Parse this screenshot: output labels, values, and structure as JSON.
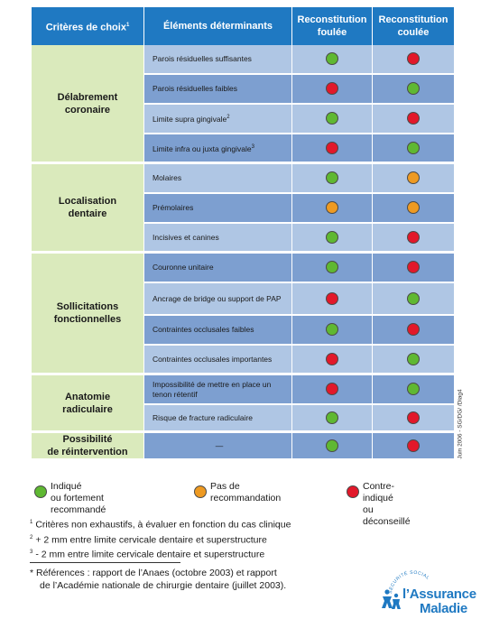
{
  "table": {
    "headers": {
      "criteria": "Critères de choix",
      "criteria_sup": "1",
      "elements": "Éléments déterminants",
      "foulee_line1": "Reconstitution",
      "foulee_line2": "foulée",
      "coulee_line1": "Reconstitution",
      "coulee_line2": "coulée"
    },
    "groups": [
      {
        "criterion_lines": [
          "Délabrement",
          "coronaire"
        ],
        "rows": [
          {
            "element": "Parois résiduelles suffisantes",
            "sup": "",
            "foulee": "green",
            "coulee": "red"
          },
          {
            "element": "Parois résiduelles faibles",
            "sup": "",
            "foulee": "red",
            "coulee": "green"
          },
          {
            "element": "Limite supra gingivale",
            "sup": "2",
            "foulee": "green",
            "coulee": "red"
          },
          {
            "element": "Limite infra ou juxta gingivale",
            "sup": "3",
            "foulee": "red",
            "coulee": "green"
          }
        ]
      },
      {
        "criterion_lines": [
          "Localisation",
          "dentaire"
        ],
        "rows": [
          {
            "element": "Molaires",
            "sup": "",
            "foulee": "green",
            "coulee": "orange"
          },
          {
            "element": "Prémolaires",
            "sup": "",
            "foulee": "orange",
            "coulee": "orange"
          },
          {
            "element": "Incisives et canines",
            "sup": "",
            "foulee": "green",
            "coulee": "red"
          }
        ]
      },
      {
        "criterion_lines": [
          "Sollicitations",
          "fonctionnelles"
        ],
        "rows": [
          {
            "element": "Couronne unitaire",
            "sup": "",
            "foulee": "green",
            "coulee": "red"
          },
          {
            "element": "Ancrage de bridge ou support de PAP",
            "sup": "",
            "foulee": "red",
            "coulee": "green"
          },
          {
            "element": "Contraintes occlusales faibles",
            "sup": "",
            "foulee": "green",
            "coulee": "red"
          },
          {
            "element": "Contraintes occlusales importantes",
            "sup": "",
            "foulee": "red",
            "coulee": "green"
          }
        ]
      },
      {
        "criterion_lines": [
          "Anatomie",
          "radiculaire"
        ],
        "rows": [
          {
            "element_lines": [
              "Impossibilité de mettre en place un",
              "tenon rétentif"
            ],
            "sup": "",
            "foulee": "red",
            "coulee": "green"
          },
          {
            "element": "Risque de fracture radiculaire",
            "sup": "",
            "foulee": "green",
            "coulee": "red"
          }
        ]
      },
      {
        "criterion_lines": [
          "Possibilité",
          "de réintervention"
        ],
        "rows": [
          {
            "element": "—",
            "sup": "",
            "foulee": "green",
            "coulee": "red",
            "center": true
          }
        ]
      }
    ]
  },
  "vertical_note": "Juin 2006 - SG/DG/ /Diag4",
  "legend": [
    {
      "color": "green",
      "lines": [
        "Indiqué",
        "ou fortement recommandé"
      ]
    },
    {
      "color": "orange",
      "lines": [
        "Pas de recommandation"
      ]
    },
    {
      "color": "red",
      "lines": [
        "Contre-indiqué",
        "ou déconseillé"
      ]
    }
  ],
  "footnotes": [
    {
      "sup": "1",
      "text": "Critères non exhaustifs, à évaluer en fonction du cas clinique"
    },
    {
      "sup": "2",
      "text": "+ 2 mm entre limite cervicale dentaire et superstructure"
    },
    {
      "sup": "3",
      "text": "- 2 mm entre limite cervicale dentaire et superstructure"
    }
  ],
  "references": [
    "* Références : rapport de l’Anaes (octobre 2003) et rapport",
    "de l’Académie nationale de chirurgie dentaire (juillet 2003)."
  ],
  "logo": {
    "line1": "l’Assurance",
    "line2": "Maladie",
    "arc_text": "SÉCURITÉ SOCIALE",
    "brand_color": "#1f79c2"
  },
  "colors": {
    "header_blue": "#1f79c2",
    "criteria_green": "#daeabc",
    "row_light": "#afc6e4",
    "row_dark": "#7d9fd0",
    "dot_green": "#5fb832",
    "dot_red": "#e2182a",
    "dot_orange": "#ee9a22"
  }
}
